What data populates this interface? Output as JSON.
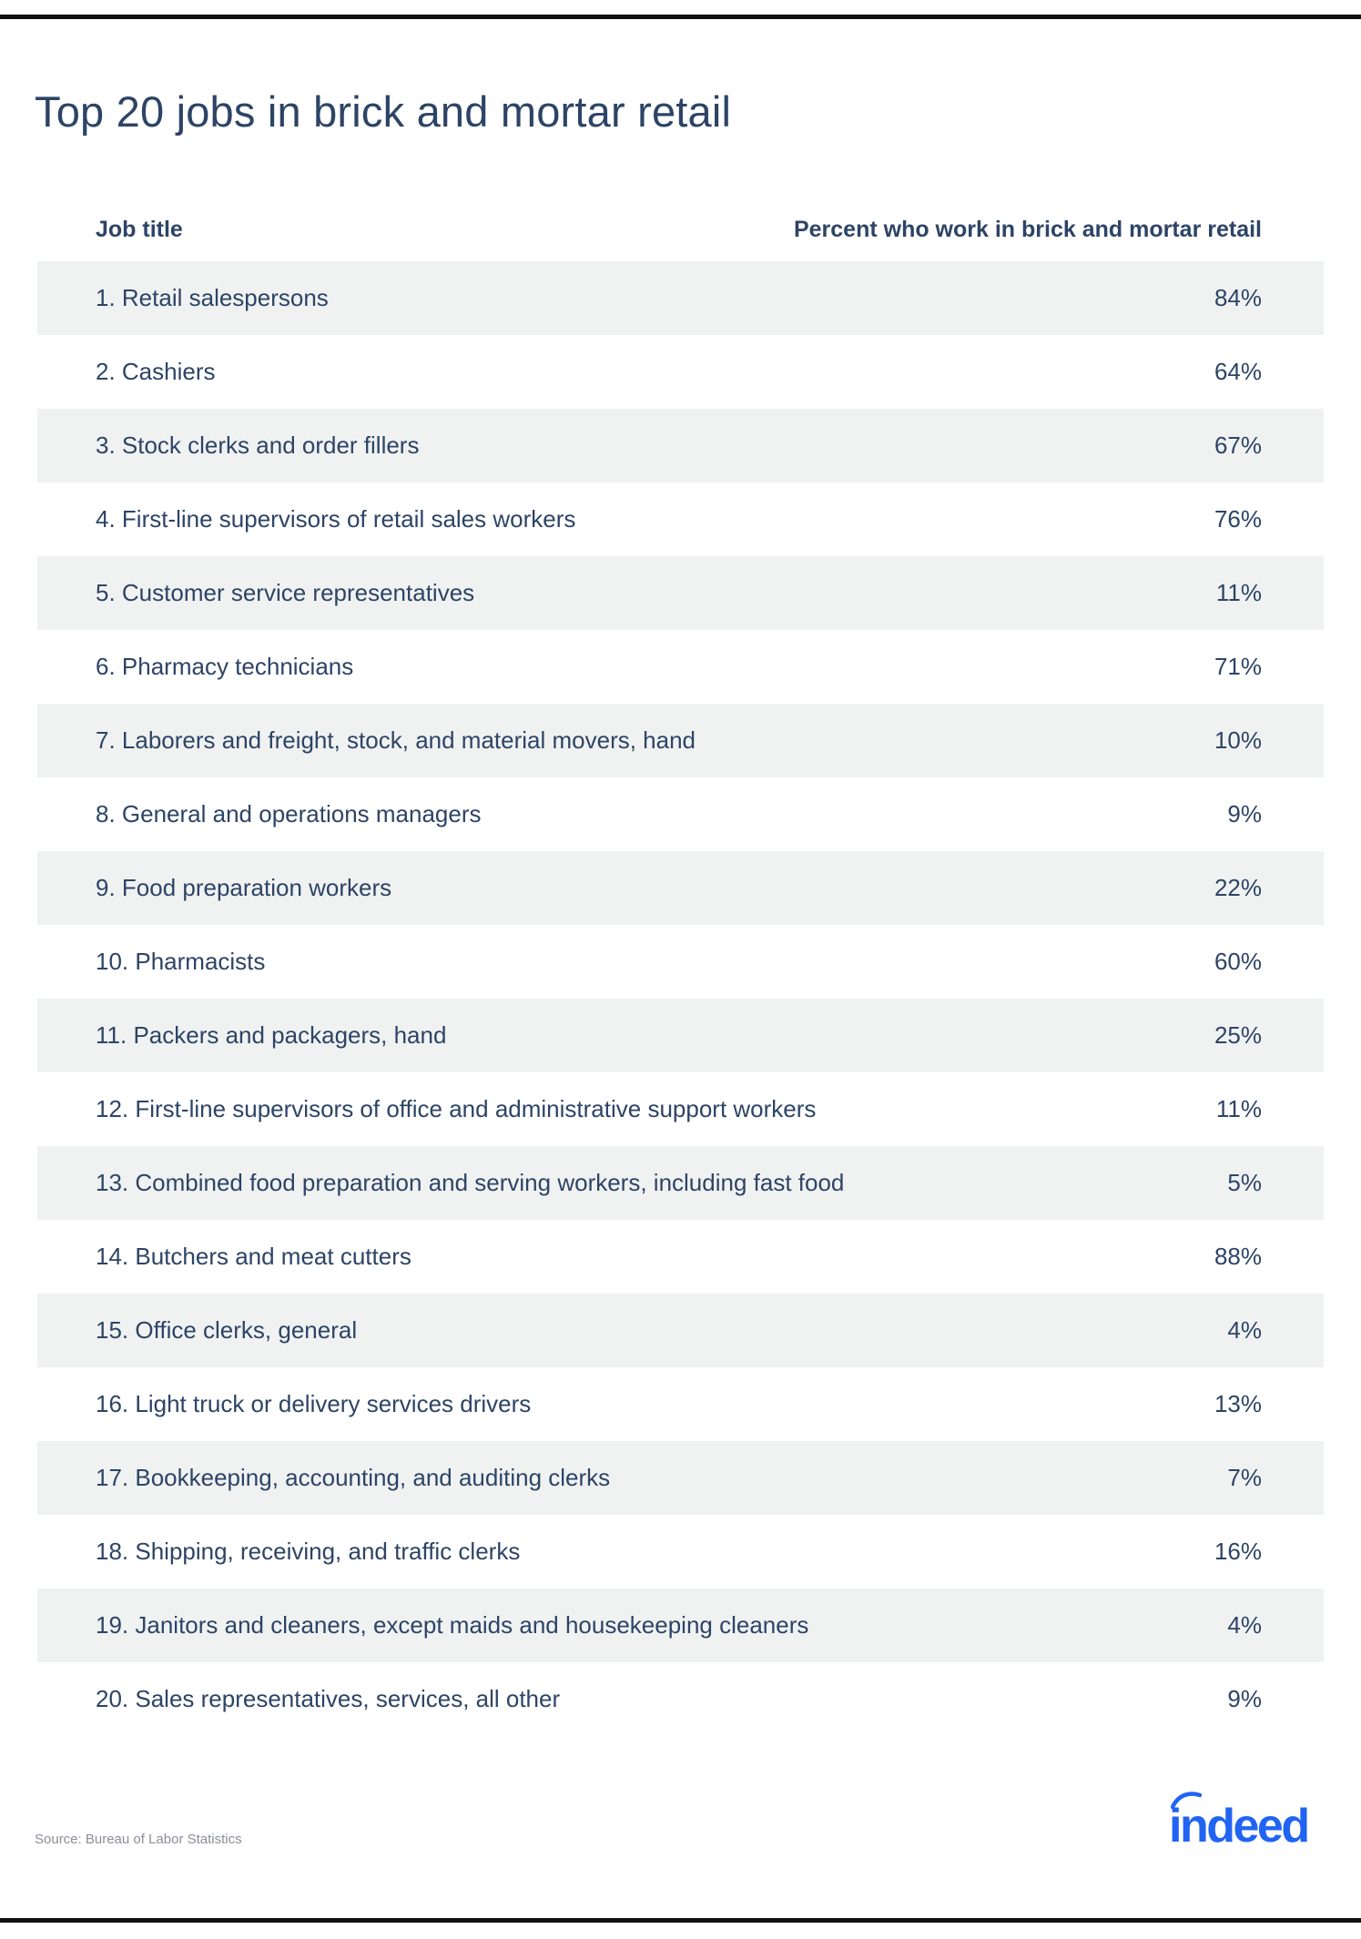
{
  "chart_data": {
    "type": "table",
    "title": "Top 20 jobs in brick and mortar retail",
    "columns": [
      "Job title",
      "Percent who work in brick and mortar retail"
    ],
    "rows": [
      {
        "job": "1. Retail salespersons",
        "percent": "84%"
      },
      {
        "job": "2. Cashiers",
        "percent": "64%"
      },
      {
        "job": "3. Stock clerks and order fillers",
        "percent": "67%"
      },
      {
        "job": "4. First-line supervisors of retail sales workers",
        "percent": "76%"
      },
      {
        "job": "5. Customer service representatives",
        "percent": "11%"
      },
      {
        "job": "6. Pharmacy technicians",
        "percent": "71%"
      },
      {
        "job": "7. Laborers and freight, stock, and material movers, hand",
        "percent": "10%"
      },
      {
        "job": "8. General and operations managers",
        "percent": "9%"
      },
      {
        "job": "9. Food preparation workers",
        "percent": "22%"
      },
      {
        "job": "10. Pharmacists",
        "percent": "60%"
      },
      {
        "job": "11. Packers and packagers, hand",
        "percent": "25%"
      },
      {
        "job": "12. First-line supervisors of office and administrative support workers",
        "percent": "11%"
      },
      {
        "job": "13. Combined food preparation and serving workers, including fast food",
        "percent": "5%"
      },
      {
        "job": "14. Butchers and meat cutters",
        "percent": "88%"
      },
      {
        "job": "15. Office clerks, general",
        "percent": "4%"
      },
      {
        "job": "16. Light truck or delivery services drivers",
        "percent": "13%"
      },
      {
        "job": "17. Bookkeeping, accounting, and auditing clerks",
        "percent": "7%"
      },
      {
        "job": "18. Shipping, receiving, and traffic clerks",
        "percent": "16%"
      },
      {
        "job": "19. Janitors and cleaners, except maids and housekeeping cleaners",
        "percent": "4%"
      },
      {
        "job": "20. Sales representatives, services, all other",
        "percent": "9%"
      }
    ],
    "source": "Source: Bureau of Labor Statistics"
  },
  "brand": {
    "logo_text": "indeed",
    "logo_color": "#2164f3"
  },
  "colors": {
    "text": "#2d4466",
    "row_shade": "#f0f2f2",
    "source_text": "#8a8f96"
  }
}
